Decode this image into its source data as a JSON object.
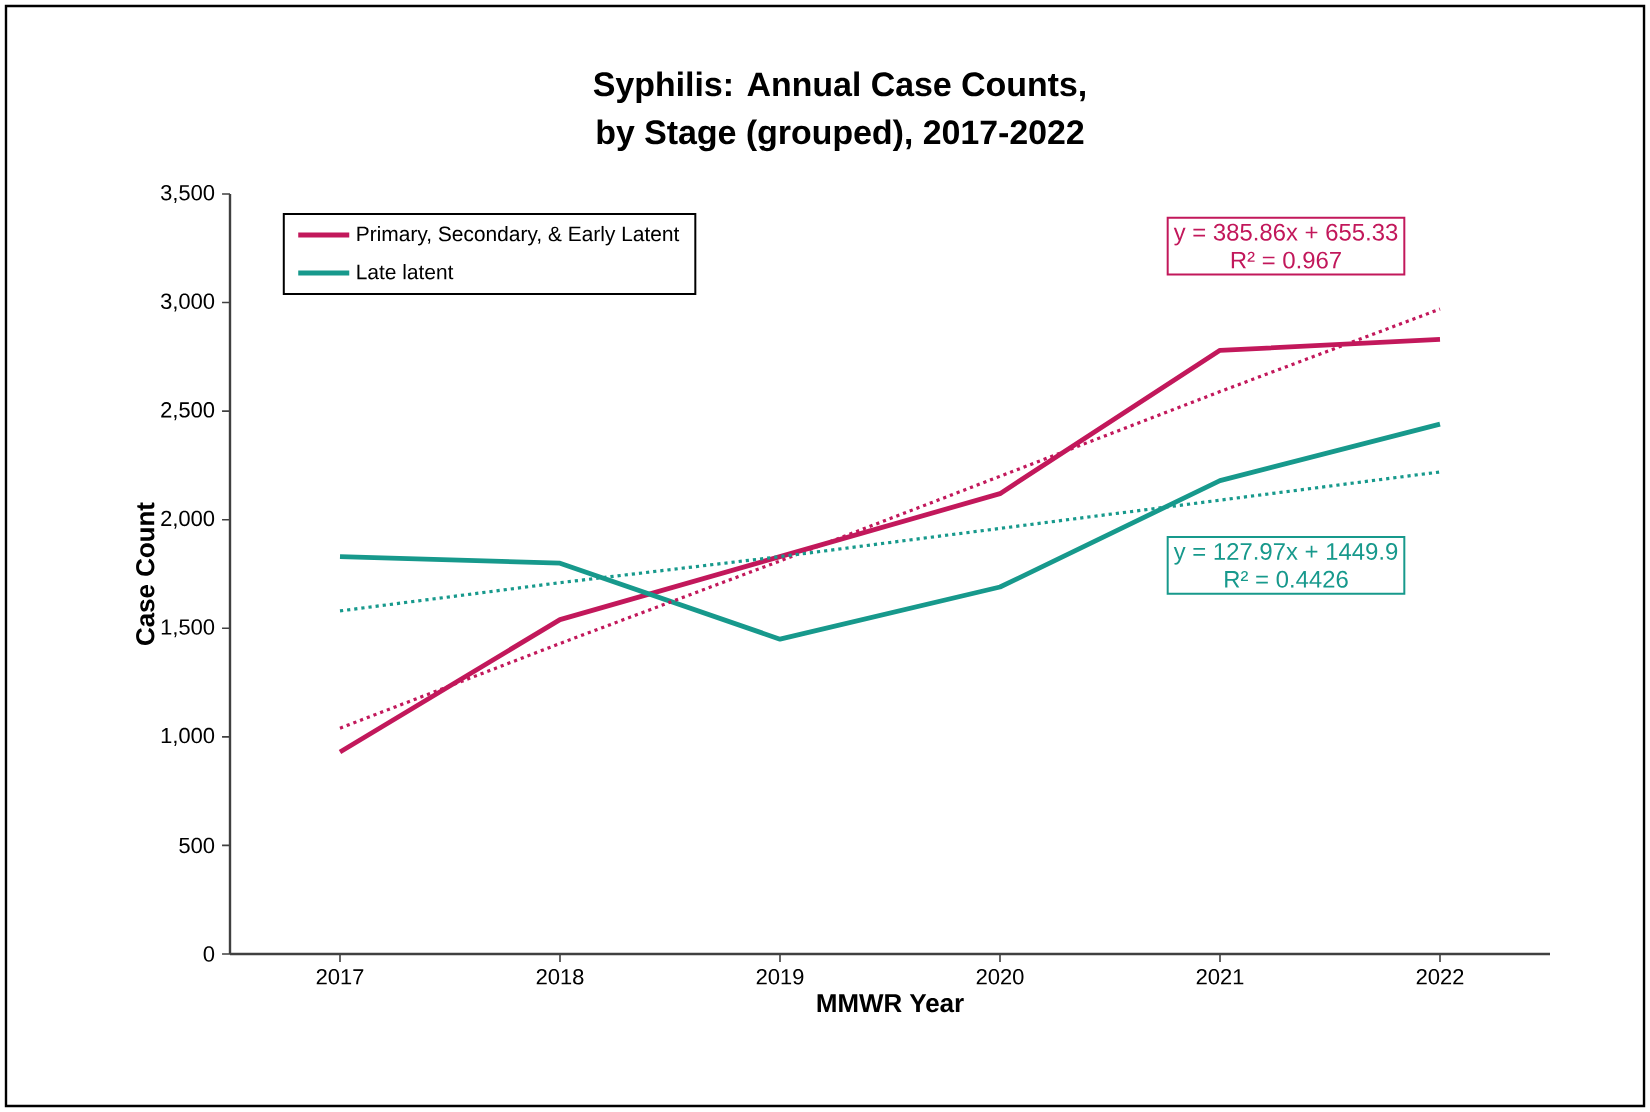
{
  "chart_data": {
    "type": "line",
    "title": "Syphilis: Annual Case Counts,",
    "subtitle": "by Stage (grouped), 2017-2022",
    "xlabel": "MMWR Year",
    "ylabel": "Case Count",
    "x": [
      2017,
      2018,
      2019,
      2020,
      2021,
      2022
    ],
    "xlim": [
      2016.5,
      2022.5
    ],
    "xticks": [
      2017,
      2018,
      2019,
      2020,
      2021,
      2022
    ],
    "ylim": [
      0,
      3500
    ],
    "yticks": [
      0,
      500,
      {
        "value": 1000,
        "label": "1,000"
      },
      {
        "value": 1500,
        "label": "1,500"
      },
      {
        "value": 2000,
        "label": "2,000"
      },
      {
        "value": 2500,
        "label": "2,500"
      },
      {
        "value": 3000,
        "label": "3,000"
      },
      {
        "value": 3500,
        "label": "3,500"
      }
    ],
    "series": [
      {
        "name": "Primary, Secondary, & Early Latent",
        "color": "#c2185b",
        "values": [
          930,
          1540,
          1830,
          2120,
          2780,
          2830
        ]
      },
      {
        "name": "Late latent",
        "color": "#17998c",
        "values": [
          1830,
          1800,
          1450,
          1690,
          2180,
          2440
        ]
      },
      {
        "type": "line",
        "color": "#c2185b",
        "line_style": "dotted",
        "values": [
          1040,
          1430,
          1810,
          2200,
          2590,
          2970
        ]
      },
      {
        "type": "line",
        "color": "#17998c",
        "line_style": "dotted",
        "values": [
          1580,
          1710,
          1830,
          1960,
          2090,
          2220
        ]
      }
    ],
    "annotations": [
      "y = 385.86x + 655.33",
      "R² = 0.967",
      "y = 127.97x + 1449.9",
      "R² = 0.4426"
    ],
    "legend": "top left",
    "grid": false,
    "marker": "none",
    "line_style": "solid"
  }
}
